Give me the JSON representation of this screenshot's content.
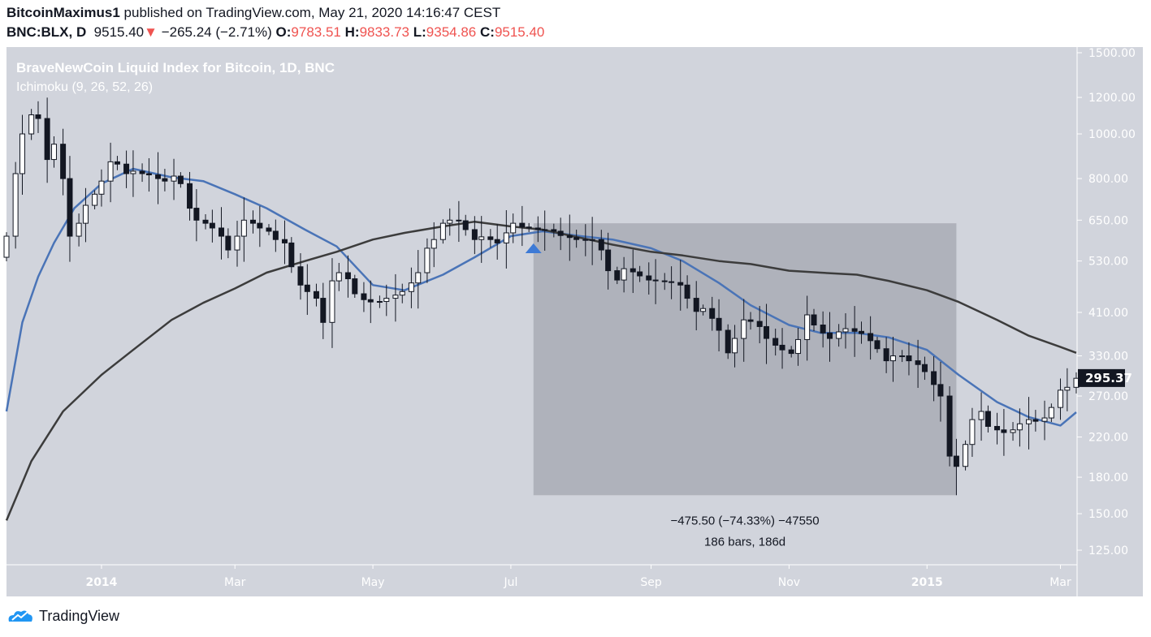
{
  "header": {
    "author": "BitcoinMaximus1",
    "published": "published on TradingView.com, May 21, 2020 14:16:47 CEST",
    "symbol": "BNC:BLX, D",
    "last": "9515.40",
    "change": "−265.24 (−2.71%)",
    "o_label": "O:",
    "o": "9783.51",
    "h_label": "H:",
    "h": "9833.73",
    "l_label": "L:",
    "l": "9354.86",
    "c_label": "C:",
    "c": "9515.40",
    "direction_icon": "triangle-down-icon"
  },
  "footer": {
    "brand": "TradingView",
    "logo_icon": "tradingview-cloud-icon"
  },
  "colors": {
    "plot_bg": "#d1d4dc",
    "up_body": "#ffffff",
    "down_body": "#131722",
    "kijun": "#4a74b7",
    "long_line": "#3c3c3c",
    "box": "#a9acb5",
    "accent_red": "#ef5350",
    "marker": "#3d7ad6"
  },
  "chart_data": {
    "type": "candlestick",
    "title": "BraveNewCoin Liquid Index for Bitcoin, 1D, BNC",
    "indicator": "Ichimoku (9, 26, 52, 26)",
    "y_scale": "log",
    "ylim": [
      115,
      1550
    ],
    "y_ticks": [
      "1500.00",
      "1200.00",
      "1000.00",
      "800.00",
      "650.00",
      "530.00",
      "410.00",
      "330.00",
      "270.00",
      "220.00",
      "180.00",
      "150.00",
      "125.00"
    ],
    "x_ticks": [
      {
        "label": "2014",
        "date": "2014-01-01",
        "bold": true
      },
      {
        "label": "Mar",
        "date": "2014-03-01"
      },
      {
        "label": "May",
        "date": "2014-05-01"
      },
      {
        "label": "Jul",
        "date": "2014-07-01"
      },
      {
        "label": "Sep",
        "date": "2014-09-01"
      },
      {
        "label": "Nov",
        "date": "2014-11-01"
      },
      {
        "label": "2015",
        "date": "2015-01-01",
        "bold": true
      },
      {
        "label": "Mar",
        "date": "2015-03-01"
      }
    ],
    "xlim": [
      "2013-11-20",
      "2015-03-08"
    ],
    "last_price": "295.37",
    "dates": [
      "2013-11-20",
      "2013-11-24",
      "2013-11-27",
      "2013-12-01",
      "2013-12-04",
      "2013-12-08",
      "2013-12-11",
      "2013-12-15",
      "2013-12-18",
      "2013-12-22",
      "2013-12-25",
      "2013-12-29",
      "2014-01-01",
      "2014-01-05",
      "2014-01-08",
      "2014-01-12",
      "2014-01-15",
      "2014-01-19",
      "2014-01-22",
      "2014-01-26",
      "2014-01-29",
      "2014-02-02",
      "2014-02-05",
      "2014-02-09",
      "2014-02-12",
      "2014-02-16",
      "2014-02-19",
      "2014-02-23",
      "2014-02-26",
      "2014-03-02",
      "2014-03-05",
      "2014-03-09",
      "2014-03-12",
      "2014-03-16",
      "2014-03-19",
      "2014-03-23",
      "2014-03-26",
      "2014-03-30",
      "2014-04-02",
      "2014-04-06",
      "2014-04-09",
      "2014-04-13",
      "2014-04-16",
      "2014-04-20",
      "2014-04-23",
      "2014-04-27",
      "2014-04-30",
      "2014-05-04",
      "2014-05-07",
      "2014-05-11",
      "2014-05-14",
      "2014-05-18",
      "2014-05-21",
      "2014-05-25",
      "2014-05-28",
      "2014-06-01",
      "2014-06-04",
      "2014-06-08",
      "2014-06-11",
      "2014-06-15",
      "2014-06-18",
      "2014-06-22",
      "2014-06-25",
      "2014-06-29",
      "2014-07-02",
      "2014-07-06",
      "2014-07-09",
      "2014-07-13",
      "2014-07-16",
      "2014-07-20",
      "2014-07-23",
      "2014-07-27",
      "2014-07-30",
      "2014-08-03",
      "2014-08-06",
      "2014-08-10",
      "2014-08-13",
      "2014-08-17",
      "2014-08-20",
      "2014-08-24",
      "2014-08-27",
      "2014-08-31",
      "2014-09-03",
      "2014-09-07",
      "2014-09-10",
      "2014-09-14",
      "2014-09-17",
      "2014-09-21",
      "2014-09-24",
      "2014-09-28",
      "2014-10-01",
      "2014-10-05",
      "2014-10-08",
      "2014-10-12",
      "2014-10-15",
      "2014-10-19",
      "2014-10-22",
      "2014-10-26",
      "2014-10-29",
      "2014-11-02",
      "2014-11-05",
      "2014-11-09",
      "2014-11-12",
      "2014-11-16",
      "2014-11-19",
      "2014-11-23",
      "2014-11-26",
      "2014-11-30",
      "2014-12-03",
      "2014-12-07",
      "2014-12-10",
      "2014-12-14",
      "2014-12-17",
      "2014-12-21",
      "2014-12-24",
      "2014-12-28",
      "2014-12-31",
      "2015-01-04",
      "2015-01-07",
      "2015-01-11",
      "2015-01-14",
      "2015-01-18",
      "2015-01-21",
      "2015-01-25",
      "2015-01-28",
      "2015-02-01",
      "2015-02-04",
      "2015-02-08",
      "2015-02-11",
      "2015-02-15",
      "2015-02-18",
      "2015-02-22",
      "2015-02-25",
      "2015-03-01",
      "2015-03-04",
      "2015-03-08"
    ],
    "close": [
      600,
      820,
      1000,
      1100,
      1080,
      880,
      950,
      800,
      600,
      640,
      700,
      740,
      790,
      870,
      860,
      820,
      830,
      820,
      815,
      800,
      790,
      810,
      780,
      690,
      650,
      640,
      625,
      600,
      560,
      600,
      650,
      640,
      625,
      615,
      590,
      580,
      515,
      470,
      455,
      440,
      390,
      480,
      500,
      485,
      450,
      437,
      432,
      433,
      440,
      447,
      455,
      475,
      500,
      565,
      590,
      640,
      650,
      648,
      620,
      590,
      598,
      590,
      580,
      610,
      640,
      628,
      625,
      620,
      620,
      615,
      602,
      596,
      590,
      590,
      590,
      560,
      505,
      482,
      510,
      502,
      492,
      482,
      480,
      478,
      476,
      470,
      440,
      412,
      418,
      398,
      375,
      335,
      360,
      395,
      392,
      382,
      360,
      348,
      340,
      334,
      358,
      405,
      385,
      370,
      360,
      372,
      378,
      373,
      369,
      356,
      342,
      322,
      330,
      330,
      322,
      316,
      305,
      286,
      270,
      200,
      190,
      212,
      240,
      250,
      232,
      228,
      225,
      228,
      235,
      240,
      238,
      242,
      255,
      278,
      282,
      295
    ],
    "series": [
      {
        "role": "kijun",
        "color": "#4a74b7",
        "points": [
          [
            "2013-11-20",
            250
          ],
          [
            "2013-11-27",
            390
          ],
          [
            "2013-12-04",
            490
          ],
          [
            "2013-12-11",
            580
          ],
          [
            "2013-12-20",
            690
          ],
          [
            "2014-01-01",
            780
          ],
          [
            "2014-01-15",
            840
          ],
          [
            "2014-02-01",
            805
          ],
          [
            "2014-02-15",
            790
          ],
          [
            "2014-03-01",
            740
          ],
          [
            "2014-03-15",
            690
          ],
          [
            "2014-04-01",
            620
          ],
          [
            "2014-04-15",
            570
          ],
          [
            "2014-05-01",
            470
          ],
          [
            "2014-05-15",
            458
          ],
          [
            "2014-06-01",
            495
          ],
          [
            "2014-06-15",
            540
          ],
          [
            "2014-07-01",
            600
          ],
          [
            "2014-07-15",
            615
          ],
          [
            "2014-08-01",
            600
          ],
          [
            "2014-08-15",
            590
          ],
          [
            "2014-09-01",
            565
          ],
          [
            "2014-09-15",
            530
          ],
          [
            "2014-10-01",
            475
          ],
          [
            "2014-10-15",
            425
          ],
          [
            "2014-11-01",
            385
          ],
          [
            "2014-11-15",
            370
          ],
          [
            "2014-12-01",
            370
          ],
          [
            "2014-12-15",
            362
          ],
          [
            "2015-01-01",
            340
          ],
          [
            "2015-01-15",
            300
          ],
          [
            "2015-02-01",
            262
          ],
          [
            "2015-02-15",
            243
          ],
          [
            "2015-03-01",
            233
          ],
          [
            "2015-03-08",
            249
          ]
        ]
      },
      {
        "role": "long-line",
        "color": "#3c3c3c",
        "points": [
          [
            "2013-11-20",
            145
          ],
          [
            "2013-12-01",
            195
          ],
          [
            "2013-12-15",
            250
          ],
          [
            "2014-01-01",
            300
          ],
          [
            "2014-01-15",
            340
          ],
          [
            "2014-02-01",
            395
          ],
          [
            "2014-02-15",
            430
          ],
          [
            "2014-03-01",
            462
          ],
          [
            "2014-03-15",
            500
          ],
          [
            "2014-04-01",
            530
          ],
          [
            "2014-04-15",
            555
          ],
          [
            "2014-05-01",
            590
          ],
          [
            "2014-05-15",
            610
          ],
          [
            "2014-06-01",
            630
          ],
          [
            "2014-06-15",
            645
          ],
          [
            "2014-07-01",
            630
          ],
          [
            "2014-07-15",
            620
          ],
          [
            "2014-08-01",
            595
          ],
          [
            "2014-08-15",
            575
          ],
          [
            "2014-09-01",
            555
          ],
          [
            "2014-09-15",
            545
          ],
          [
            "2014-10-01",
            530
          ],
          [
            "2014-10-15",
            522
          ],
          [
            "2014-11-01",
            505
          ],
          [
            "2014-11-15",
            500
          ],
          [
            "2014-12-01",
            495
          ],
          [
            "2014-12-15",
            480
          ],
          [
            "2015-01-01",
            458
          ],
          [
            "2015-01-15",
            432
          ],
          [
            "2015-02-01",
            395
          ],
          [
            "2015-02-15",
            365
          ],
          [
            "2015-03-01",
            345
          ],
          [
            "2015-03-08",
            335
          ]
        ]
      }
    ],
    "annotations": {
      "measure_box": {
        "from_date": "2014-07-11",
        "to_date": "2015-01-14",
        "top": 640,
        "bottom": 164.5
      },
      "measure_line1": "−475.50 (−74.33%) −47550",
      "measure_line2": "186 bars, 186d",
      "marker": {
        "date": "2014-07-11",
        "icon": "triangle-up-icon"
      }
    }
  }
}
